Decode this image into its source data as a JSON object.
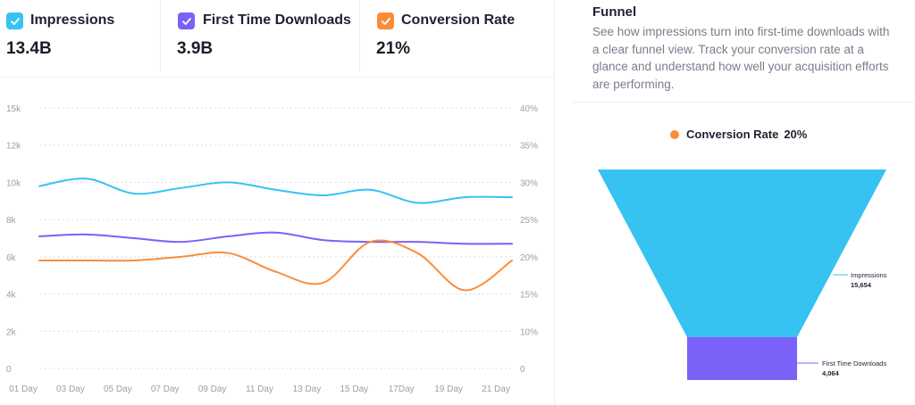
{
  "metrics": [
    {
      "label": "Impressions",
      "value": "13.4B",
      "color": "#36c3f2"
    },
    {
      "label": "First Time Downloads",
      "value": "3.9B",
      "color": "#7b61f8"
    },
    {
      "label": "Conversion Rate",
      "value": "21%",
      "color": "#fb8c3c"
    }
  ],
  "funnel": {
    "title": "Funnel",
    "description": "See how impressions turn into first-time downloads with a clear funnel view. Track your conversion rate at a glance and understand how well your acquisition efforts are performing.",
    "legend_label": "Conversion Rate",
    "legend_value": "20%",
    "legend_color": "#fb8c3c"
  },
  "chart_data": [
    {
      "type": "line",
      "x": [
        "01 Day",
        "03 Day",
        "05 Day",
        "07 Day",
        "09 Day",
        "11 Day",
        "13 Day",
        "15 Day",
        "17Day",
        "19 Day",
        "21 Day"
      ],
      "y_left_ticks": [
        "0",
        "2k",
        "4k",
        "6k",
        "8k",
        "10k",
        "12k",
        "15k"
      ],
      "y_right_ticks": [
        "0",
        "10%",
        "15%",
        "20%",
        "25%",
        "30%",
        "35%",
        "40%"
      ],
      "series": [
        {
          "name": "Impressions",
          "axis": "left",
          "color": "#36c3f2",
          "values": [
            9.8,
            10.2,
            9.4,
            9.7,
            10.0,
            9.6,
            9.3,
            9.6,
            8.9,
            9.2,
            9.2
          ]
        },
        {
          "name": "First Time Downloads",
          "axis": "left",
          "color": "#7b61f8",
          "values": [
            7.1,
            7.2,
            7.0,
            6.8,
            7.1,
            7.3,
            6.9,
            6.8,
            6.8,
            6.7,
            6.7
          ]
        },
        {
          "name": "Conversion Rate",
          "axis": "right",
          "color": "#fb8c3c",
          "values": [
            19.5,
            19.5,
            19.5,
            20.0,
            20.5,
            18.0,
            16.5,
            22.0,
            20.5,
            15.5,
            19.5
          ]
        }
      ],
      "grid": true
    },
    {
      "type": "funnel",
      "stages": [
        {
          "name": "Impressions",
          "value": 15654,
          "label": "15,654",
          "color": "#36c3f2"
        },
        {
          "name": "First Time Downloads",
          "value": 4064,
          "label": "4,064",
          "color": "#7b61f8"
        }
      ]
    }
  ]
}
